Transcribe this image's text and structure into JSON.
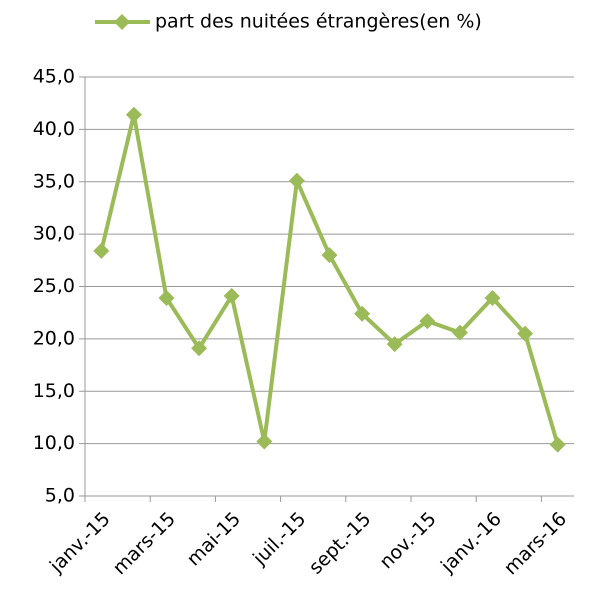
{
  "chart_data": {
    "type": "line",
    "categories": [
      "janv.-15",
      null,
      "mars-15",
      null,
      "mai-15",
      null,
      "juil.-15",
      null,
      "sept.-15",
      null,
      "nov.-15",
      null,
      "janv.-16",
      null,
      "mars-16"
    ],
    "series": [
      {
        "name": "part des nuitées étrangères(en %)",
        "color": "#9bbb59",
        "values": [
          28.4,
          41.4,
          23.9,
          19.1,
          24.1,
          10.2,
          35.1,
          28.0,
          22.4,
          19.5,
          21.7,
          20.6,
          23.9,
          20.5,
          9.9
        ]
      }
    ],
    "ylim": [
      5,
      45
    ],
    "yticks": [
      {
        "value": 5,
        "label": "5,0"
      },
      {
        "value": 10,
        "label": "10,0"
      },
      {
        "value": 15,
        "label": "15,0"
      },
      {
        "value": 20,
        "label": "20,0"
      },
      {
        "value": 25,
        "label": "25,0"
      },
      {
        "value": 30,
        "label": "30,0"
      },
      {
        "value": 35,
        "label": "35,0"
      },
      {
        "value": 40,
        "label": "40,0"
      },
      {
        "value": 45,
        "label": "45,0"
      }
    ],
    "grid": true,
    "legend": "top"
  }
}
